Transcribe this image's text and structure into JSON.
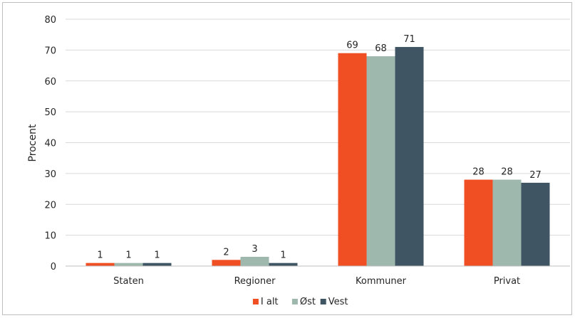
{
  "chart_data": {
    "type": "bar",
    "ylabel": "Procent",
    "ylim": [
      0,
      80
    ],
    "yticks": [
      0,
      10,
      20,
      30,
      40,
      50,
      60,
      70,
      80
    ],
    "grid": true,
    "legend_position": "bottom",
    "categories": [
      "Staten",
      "Regioner",
      "Kommuner",
      "Privat"
    ],
    "series": [
      {
        "name": "I alt",
        "color": "#f04e23",
        "values": [
          1,
          2,
          69,
          28
        ],
        "labels": [
          "1",
          "2",
          "69",
          "28"
        ]
      },
      {
        "name": "Øst",
        "color": "#9fb8ae",
        "values": [
          1,
          3,
          68,
          28
        ],
        "labels": [
          "1",
          "3",
          "68",
          "28"
        ]
      },
      {
        "name": "Vest",
        "color": "#405563",
        "values": [
          1,
          1,
          71,
          27
        ],
        "labels": [
          "1",
          "1",
          "71",
          "27"
        ]
      }
    ]
  }
}
